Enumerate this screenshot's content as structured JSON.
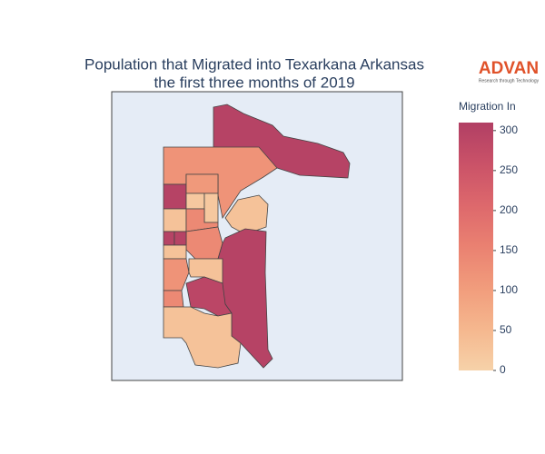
{
  "chart_data": {
    "type": "choropleth",
    "title": [
      "Population that Migrated into Texarkana Arkansas",
      "the first three months of 2019"
    ],
    "logo": {
      "text": "ADVAN",
      "tagline": "Research through Technology"
    },
    "colorbar": {
      "title": "Migration In",
      "range": [
        0,
        310
      ],
      "ticks": [
        0,
        50,
        100,
        150,
        200,
        250,
        300
      ]
    },
    "colorscale": [
      "#f6d2a9",
      "#f5b78e",
      "#f19c7c",
      "#ea8171",
      "#dd686c",
      "#ca5268",
      "#b13f64"
    ],
    "values": [
      300,
      120,
      300,
      30,
      110,
      20,
      20,
      140,
      140,
      30,
      300,
      300,
      300,
      30,
      120,
      30,
      140,
      290,
      30
    ]
  }
}
